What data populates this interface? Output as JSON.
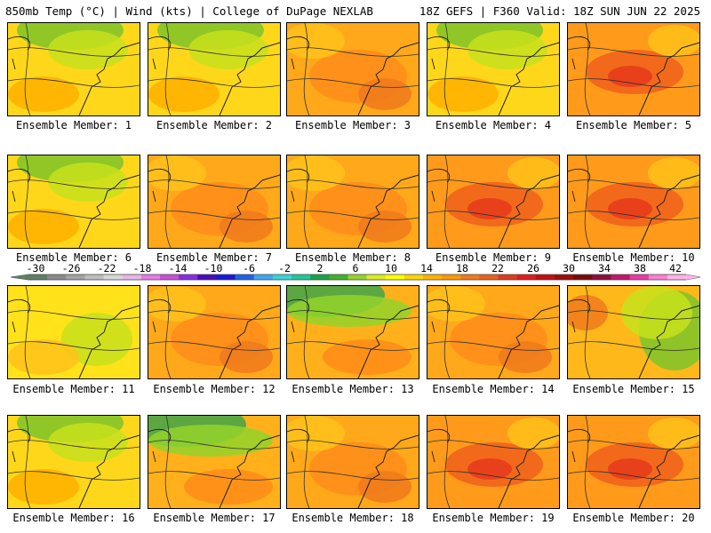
{
  "header": {
    "left": "850mb Temp (°C) | Wind (kts) | College of DuPage NEXLAB",
    "right": "18Z GEFS | F360 Valid: 18Z SUN JUN 22 2025"
  },
  "colorbar": {
    "labels": [
      "-30",
      "-26",
      "-22",
      "-18",
      "-14",
      "-10",
      "-6",
      "-2",
      "2",
      "6",
      "10",
      "14",
      "18",
      "22",
      "26",
      "30",
      "34",
      "38",
      "42"
    ],
    "colors": [
      "#5f7f65",
      "#8a8a8a",
      "#a3a3a3",
      "#bdbdbd",
      "#d7d7d7",
      "#e6b6e6",
      "#e67ae6",
      "#c94fd9",
      "#8a2be2",
      "#4b0bbf",
      "#1a1ad6",
      "#1f63e6",
      "#3fa6f0",
      "#37d5d5",
      "#22c79a",
      "#1aa34a",
      "#43b02a",
      "#93d42a",
      "#d9ed1c",
      "#ffff00",
      "#ffd400",
      "#ffb000",
      "#ff9900",
      "#f07a1c",
      "#e8601c",
      "#e23a1c",
      "#e01c1c",
      "#c40f0f",
      "#9e0c0c",
      "#7a0a0a",
      "#8f0f3f",
      "#c0186e",
      "#ea3aa5",
      "#ff7fd0",
      "#ffb3e6"
    ]
  },
  "members": [
    {
      "label": "Ensemble Member: 1",
      "scheme": "yellow-green-north"
    },
    {
      "label": "Ensemble Member: 2",
      "scheme": "yellow-green-north"
    },
    {
      "label": "Ensemble Member: 3",
      "scheme": "orange"
    },
    {
      "label": "Ensemble Member: 4",
      "scheme": "yellow-green-north"
    },
    {
      "label": "Ensemble Member: 5",
      "scheme": "orange-hot"
    },
    {
      "label": "Ensemble Member: 6",
      "scheme": "yellow-green-north"
    },
    {
      "label": "Ensemble Member: 7",
      "scheme": "orange"
    },
    {
      "label": "Ensemble Member: 8",
      "scheme": "orange"
    },
    {
      "label": "Ensemble Member: 9",
      "scheme": "orange-hot"
    },
    {
      "label": "Ensemble Member: 10",
      "scheme": "orange-hot"
    },
    {
      "label": "Ensemble Member: 11",
      "scheme": "yellow"
    },
    {
      "label": "Ensemble Member: 12",
      "scheme": "orange"
    },
    {
      "label": "Ensemble Member: 13",
      "scheme": "green-northwest"
    },
    {
      "label": "Ensemble Member: 14",
      "scheme": "orange"
    },
    {
      "label": "Ensemble Member: 15",
      "scheme": "green-east"
    },
    {
      "label": "Ensemble Member: 16",
      "scheme": "yellow-green-north"
    },
    {
      "label": "Ensemble Member: 17",
      "scheme": "green-northwest"
    },
    {
      "label": "Ensemble Member: 18",
      "scheme": "orange"
    },
    {
      "label": "Ensemble Member: 19",
      "scheme": "orange-hot"
    },
    {
      "label": "Ensemble Member: 20",
      "scheme": "orange-hot"
    }
  ]
}
